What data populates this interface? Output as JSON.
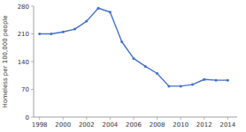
{
  "chart_data": {
    "type": "line",
    "ylabel": "Homeless per 100,000 people",
    "x": [
      1998,
      1999,
      2000,
      2001,
      2002,
      2003,
      2004,
      2005,
      2006,
      2007,
      2008,
      2009,
      2010,
      2011,
      2012,
      2013,
      2014
    ],
    "values": [
      210,
      210,
      215,
      222,
      242,
      275,
      265,
      190,
      148,
      128,
      110,
      78,
      78,
      82,
      95,
      93,
      93
    ],
    "color": "#4472c4",
    "marker": "circle",
    "xlim": [
      1997.5,
      2014.8
    ],
    "xticks": [
      1998,
      2000,
      2002,
      2004,
      2006,
      2008,
      2010,
      2012,
      2014
    ],
    "ylim": [
      0,
      280
    ],
    "yticks": [
      0,
      70,
      140,
      210,
      280
    ],
    "grid": false
  }
}
